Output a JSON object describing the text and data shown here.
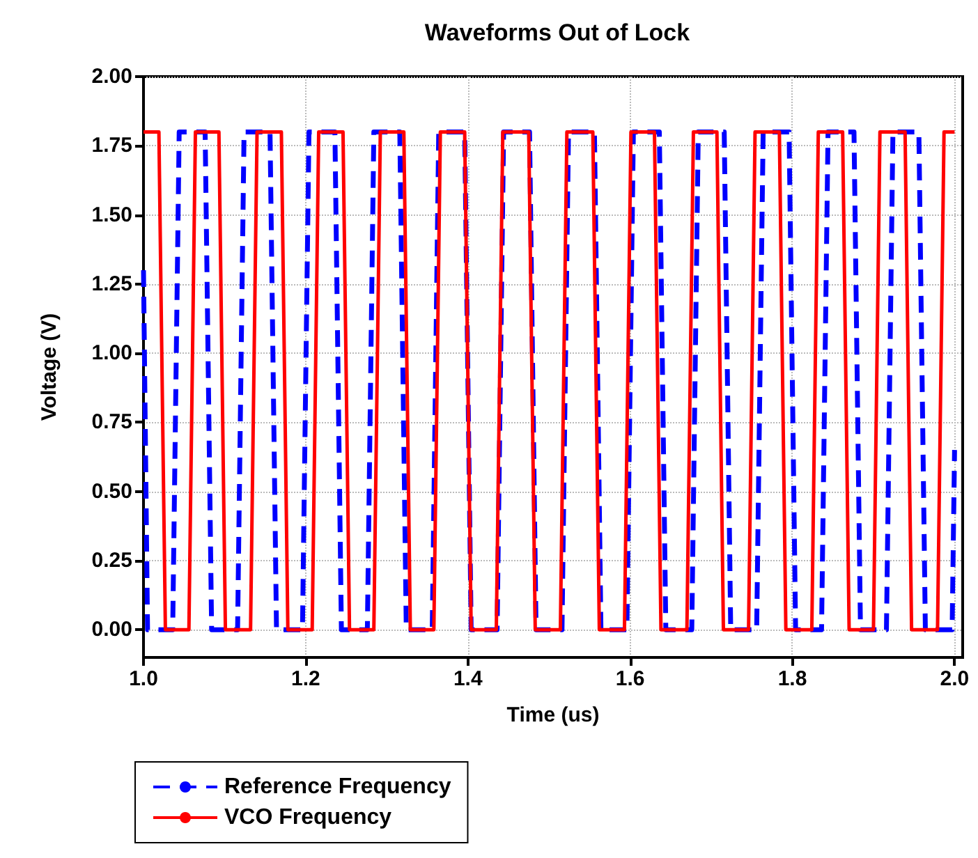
{
  "chart_data": {
    "type": "line",
    "title": "Waveforms Out of Lock",
    "xlabel": "Time (us)",
    "ylabel": "Voltage (V)",
    "xlim": [
      1.0,
      2.01
    ],
    "ylim": [
      -0.1,
      2.0
    ],
    "xticks": [
      {
        "value": 1.0,
        "label": "1.0"
      },
      {
        "value": 1.2,
        "label": "1.2"
      },
      {
        "value": 1.4,
        "label": "1.4"
      },
      {
        "value": 1.6,
        "label": "1.6"
      },
      {
        "value": 1.8,
        "label": "1.8"
      },
      {
        "value": 2.0,
        "label": "2.0"
      }
    ],
    "yticks": [
      {
        "value": 0,
        "label": "0.00"
      },
      {
        "value": 0.25,
        "label": "0.25"
      },
      {
        "value": 0.5,
        "label": "0.50"
      },
      {
        "value": 0.75,
        "label": "0.75"
      },
      {
        "value": 1.0,
        "label": "1.00"
      },
      {
        "value": 1.25,
        "label": "1.25"
      },
      {
        "value": 1.5,
        "label": "1.50"
      },
      {
        "value": 1.75,
        "label": "1.75"
      },
      {
        "value": 2.0,
        "label": "2.00"
      }
    ],
    "grid": true,
    "legend": "bottom left",
    "marker": "none",
    "series": [
      {
        "name": "Reference Frequency",
        "color": "#0000ff",
        "line_style": "dashed",
        "x": [
          1.0,
          1.005,
          1.036,
          1.044,
          1.076,
          1.084,
          1.116,
          1.124,
          1.156,
          1.164,
          1.196,
          1.204,
          1.236,
          1.244,
          1.276,
          1.284,
          1.316,
          1.324,
          1.356,
          1.364,
          1.396,
          1.404,
          1.436,
          1.444,
          1.476,
          1.484,
          1.516,
          1.524,
          1.556,
          1.564,
          1.596,
          1.604,
          1.636,
          1.644,
          1.676,
          1.684,
          1.716,
          1.724,
          1.756,
          1.764,
          1.796,
          1.804,
          1.836,
          1.844,
          1.876,
          1.884,
          1.916,
          1.924,
          1.956,
          1.964,
          1.997,
          2.0
        ],
        "values": [
          1.3,
          0,
          0,
          1.8,
          1.8,
          0,
          0,
          1.8,
          1.8,
          0,
          0,
          1.8,
          1.8,
          0,
          0,
          1.8,
          1.8,
          0,
          0,
          1.8,
          1.8,
          0,
          0,
          1.8,
          1.8,
          0,
          0,
          1.8,
          1.8,
          0,
          0,
          1.8,
          1.8,
          0,
          0,
          1.8,
          1.8,
          0,
          0,
          1.8,
          1.8,
          0,
          0,
          1.8,
          1.8,
          0,
          0,
          1.8,
          1.8,
          0,
          0,
          0.65
        ]
      },
      {
        "name": "VCO Frequency",
        "color": "#ff0000",
        "line_style": "solid",
        "x": [
          1.0,
          1.019,
          1.027,
          1.056,
          1.064,
          1.093,
          1.101,
          1.132,
          1.14,
          1.17,
          1.178,
          1.208,
          1.216,
          1.246,
          1.254,
          1.284,
          1.292,
          1.321,
          1.329,
          1.358,
          1.366,
          1.396,
          1.404,
          1.435,
          1.443,
          1.475,
          1.483,
          1.514,
          1.522,
          1.554,
          1.562,
          1.593,
          1.601,
          1.63,
          1.638,
          1.67,
          1.678,
          1.707,
          1.715,
          1.746,
          1.754,
          1.784,
          1.792,
          1.824,
          1.832,
          1.862,
          1.87,
          1.9,
          1.908,
          1.939,
          1.947,
          1.979,
          1.987,
          2.0
        ],
        "values": [
          1.8,
          1.8,
          0,
          0,
          1.8,
          1.8,
          0,
          0,
          1.8,
          1.8,
          0,
          0,
          1.8,
          1.8,
          0,
          0,
          1.8,
          1.8,
          0,
          0,
          1.8,
          1.8,
          0,
          0,
          1.8,
          1.8,
          0,
          0,
          1.8,
          1.8,
          0,
          0,
          1.8,
          1.8,
          0,
          0,
          1.8,
          1.8,
          0,
          0,
          1.8,
          1.8,
          0,
          0,
          1.8,
          1.8,
          0,
          0,
          1.8,
          1.8,
          0,
          0,
          1.8,
          1.8
        ]
      }
    ]
  }
}
